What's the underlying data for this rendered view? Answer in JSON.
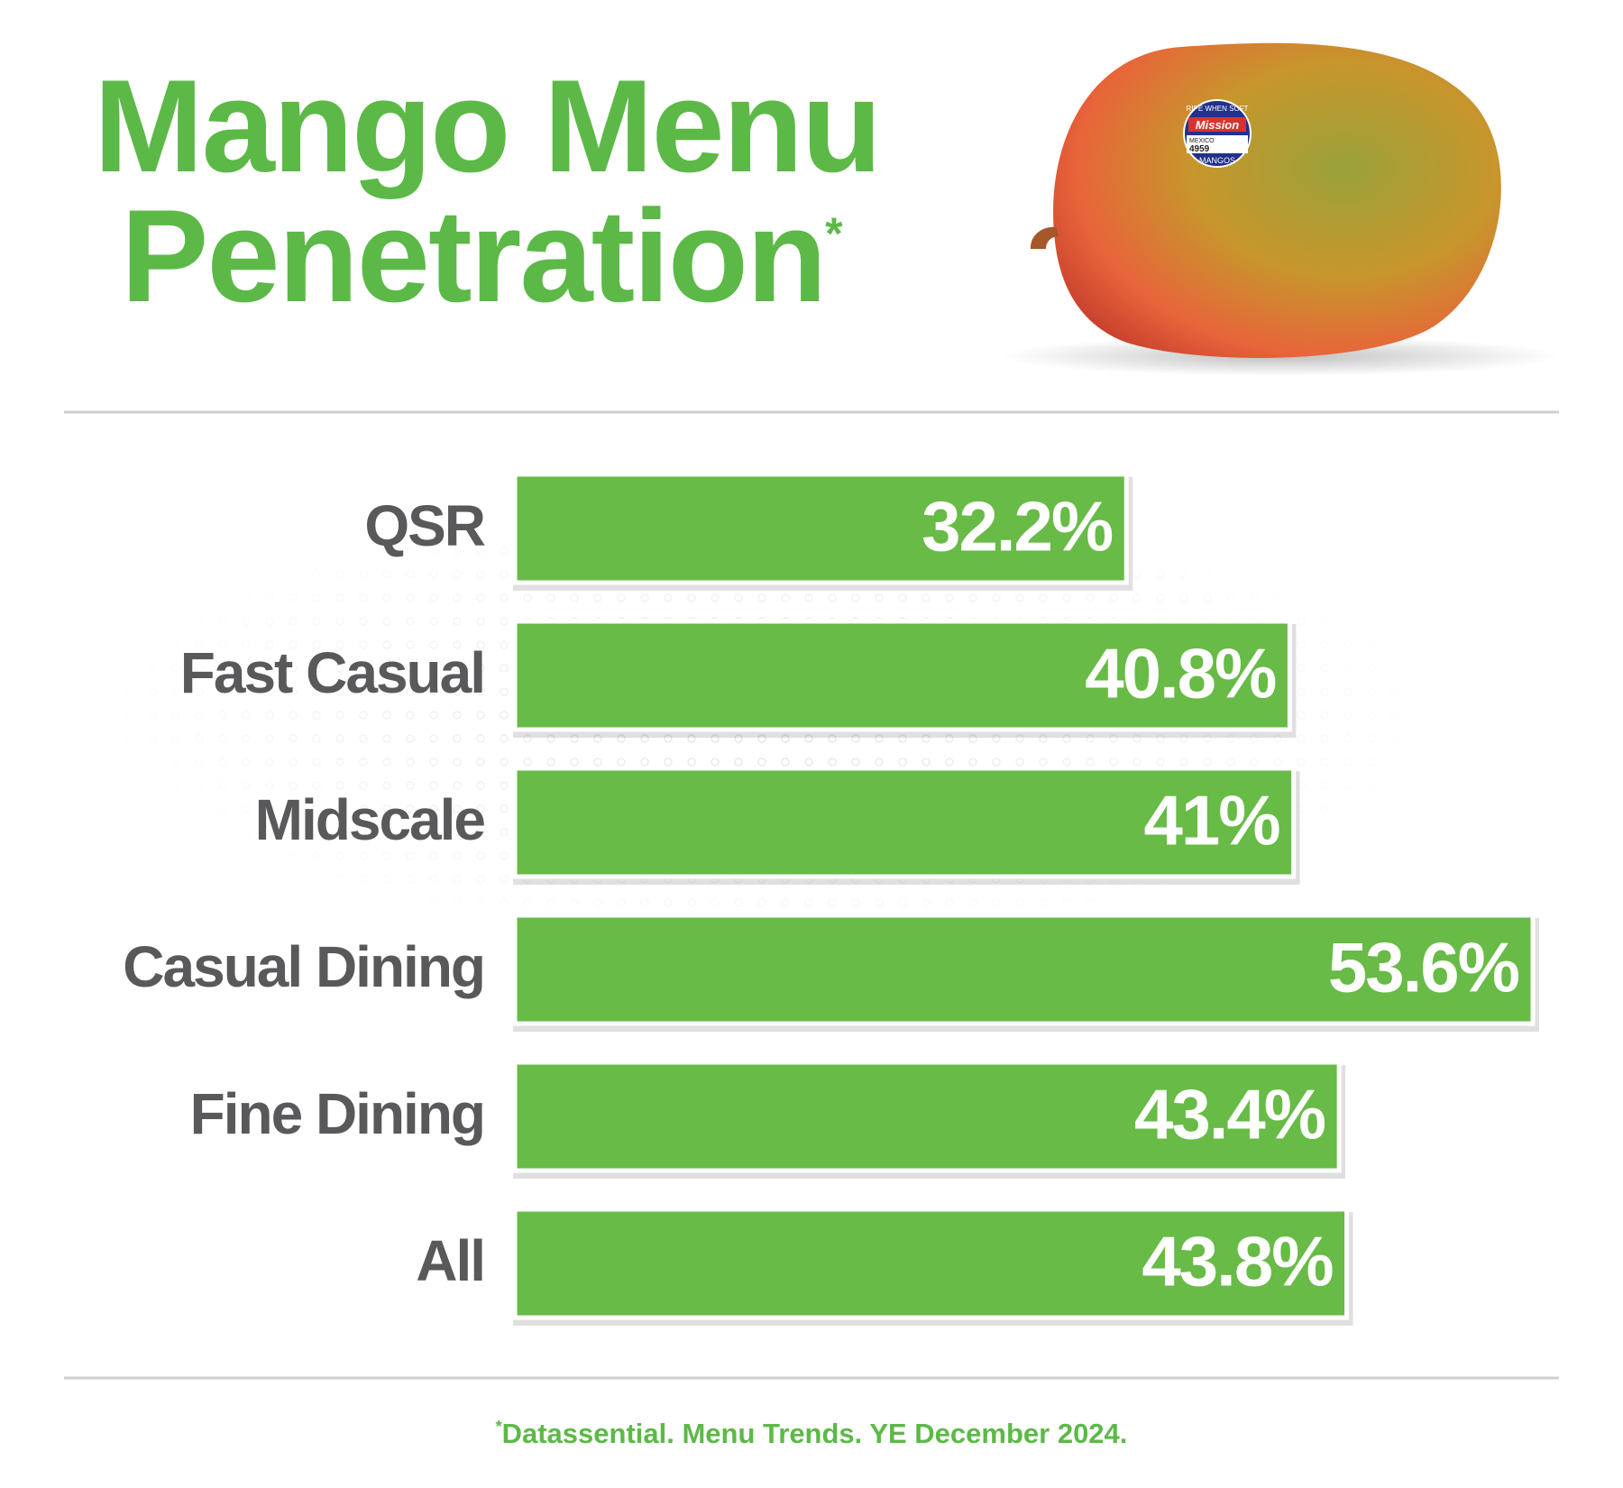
{
  "chart_data": {
    "type": "bar",
    "orientation": "horizontal",
    "title": "Mango Menu Penetration",
    "title_marker": "*",
    "categories": [
      "QSR",
      "Fast Casual",
      "Midscale",
      "Casual Dining",
      "Fine Dining",
      "All"
    ],
    "values": [
      32.2,
      40.8,
      41,
      53.6,
      43.4,
      43.8
    ],
    "value_labels": [
      "32.2%",
      "40.8%",
      "41%",
      "53.6%",
      "43.4%",
      "43.8%"
    ],
    "color": "#67bb46",
    "footnote_marker": "*",
    "footnote": "Datassential. Menu Trends. YE December 2024."
  },
  "sticker": {
    "top": "RIPE WHEN SOFT",
    "brand": "Mission",
    "origin": "MEXICO",
    "code": "4959",
    "bottom": "MANGOS"
  }
}
